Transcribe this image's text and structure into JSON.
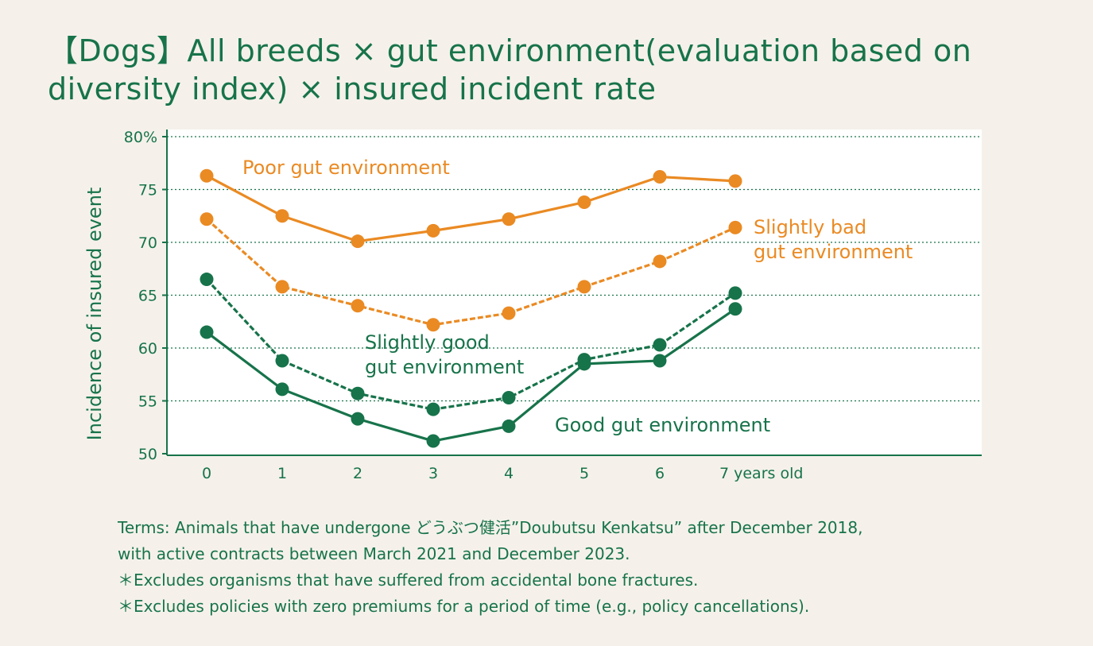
{
  "title": "【Dogs】All breeds × gut environment(evaluation based on diversity index) × insured incident rate",
  "chart_data": {
    "type": "line",
    "title": "【Dogs】All breeds × gut environment(evaluation based on diversity index) × insured incident rate",
    "xlabel": "",
    "ylabel": "Incidence of insured event",
    "x": [
      0,
      1,
      2,
      3,
      4,
      5,
      6,
      7
    ],
    "x_tick_labels": [
      "0",
      "1",
      "2",
      "3",
      "4",
      "5",
      "6",
      "7 years old"
    ],
    "y_tick_labels": [
      "80%",
      "75",
      "70",
      "65",
      "60",
      "55",
      "50"
    ],
    "ylim": [
      50,
      80
    ],
    "grid": true,
    "grid_style": "dotted horizontal",
    "legend": "inline labels next to each line",
    "series": [
      {
        "name": "Poor gut environment",
        "label_lines": [
          "Poor gut environment"
        ],
        "color": "#ea8a23",
        "line_style": "solid",
        "values": [
          76.3,
          72.5,
          70.1,
          71.1,
          72.2,
          73.8,
          76.2,
          75.8
        ]
      },
      {
        "name": "Slightly bad gut environment",
        "label_lines": [
          "Slightly bad",
          "gut environment"
        ],
        "color": "#ea8a23",
        "line_style": "dashed",
        "values": [
          72.2,
          65.8,
          64.0,
          62.2,
          63.3,
          65.8,
          68.2,
          71.4
        ]
      },
      {
        "name": "Slightly good gut environment",
        "label_lines": [
          "Slightly good",
          "gut environment"
        ],
        "color": "#17734a",
        "line_style": "dashed",
        "values": [
          66.5,
          58.8,
          55.7,
          54.2,
          55.3,
          58.9,
          60.3,
          65.2
        ]
      },
      {
        "name": "Good gut environment",
        "label_lines": [
          "Good gut environment"
        ],
        "color": "#17734a",
        "line_style": "solid",
        "values": [
          61.5,
          56.1,
          53.3,
          51.2,
          52.6,
          58.5,
          58.8,
          63.7
        ]
      }
    ]
  },
  "footnotes": [
    "Terms: Animals that have undergone どうぶつ健活”Doubutsu Kenkatsu” after December 2018,",
    "with active contracts between March 2021 and December 2023.",
    "＊Excludes organisms that have suffered from accidental bone fractures.",
    "＊Excludes policies with zero premiums for a period of time (e.g., policy cancellations)."
  ],
  "colors": {
    "background": "#f5f1ea",
    "plot_background": "#ffffff",
    "green": "#17734a",
    "orange": "#ea8a23"
  }
}
